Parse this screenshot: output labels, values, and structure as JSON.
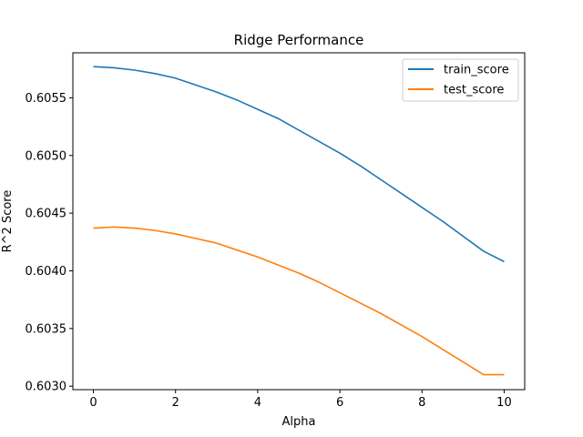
{
  "chart_data": {
    "type": "line",
    "title": "Ridge Performance",
    "xlabel": "Alpha",
    "ylabel": "R^2 Score",
    "xlim": [
      -0.5,
      10.5
    ],
    "ylim": [
      0.60297,
      0.60589
    ],
    "xticks": [
      0,
      2,
      4,
      6,
      8,
      10
    ],
    "xtick_labels": [
      "0",
      "2",
      "4",
      "6",
      "8",
      "10"
    ],
    "yticks": [
      0.603,
      0.6035,
      0.604,
      0.6045,
      0.605,
      0.6055
    ],
    "ytick_labels": [
      "0.6030",
      "0.6035",
      "0.6040",
      "0.6045",
      "0.6050",
      "0.6055"
    ],
    "grid": false,
    "legend_position": "top-right",
    "x": [
      0,
      0.5,
      1,
      1.5,
      2,
      2.5,
      3,
      3.5,
      4,
      4.5,
      5,
      5.5,
      6,
      6.5,
      7,
      7.5,
      8,
      8.5,
      9,
      9.5,
      10
    ],
    "series": [
      {
        "name": "train_score",
        "color": "#1f77b4",
        "values": [
          0.60577,
          0.60576,
          0.60574,
          0.60571,
          0.60567,
          0.60561,
          0.60555,
          0.60548,
          0.6054,
          0.60532,
          0.60522,
          0.60512,
          0.60502,
          0.60491,
          0.60479,
          0.60467,
          0.60455,
          0.60443,
          0.6043,
          0.60417,
          0.60408
        ]
      },
      {
        "name": "test_score",
        "color": "#ff7f0e",
        "values": [
          0.60437,
          0.60438,
          0.60437,
          0.60435,
          0.60432,
          0.60428,
          0.60424,
          0.60418,
          0.60412,
          0.60405,
          0.60398,
          0.6039,
          0.60381,
          0.60372,
          0.60363,
          0.60353,
          0.60343,
          0.60332,
          0.60321,
          0.6031,
          0.6031
        ]
      }
    ]
  }
}
